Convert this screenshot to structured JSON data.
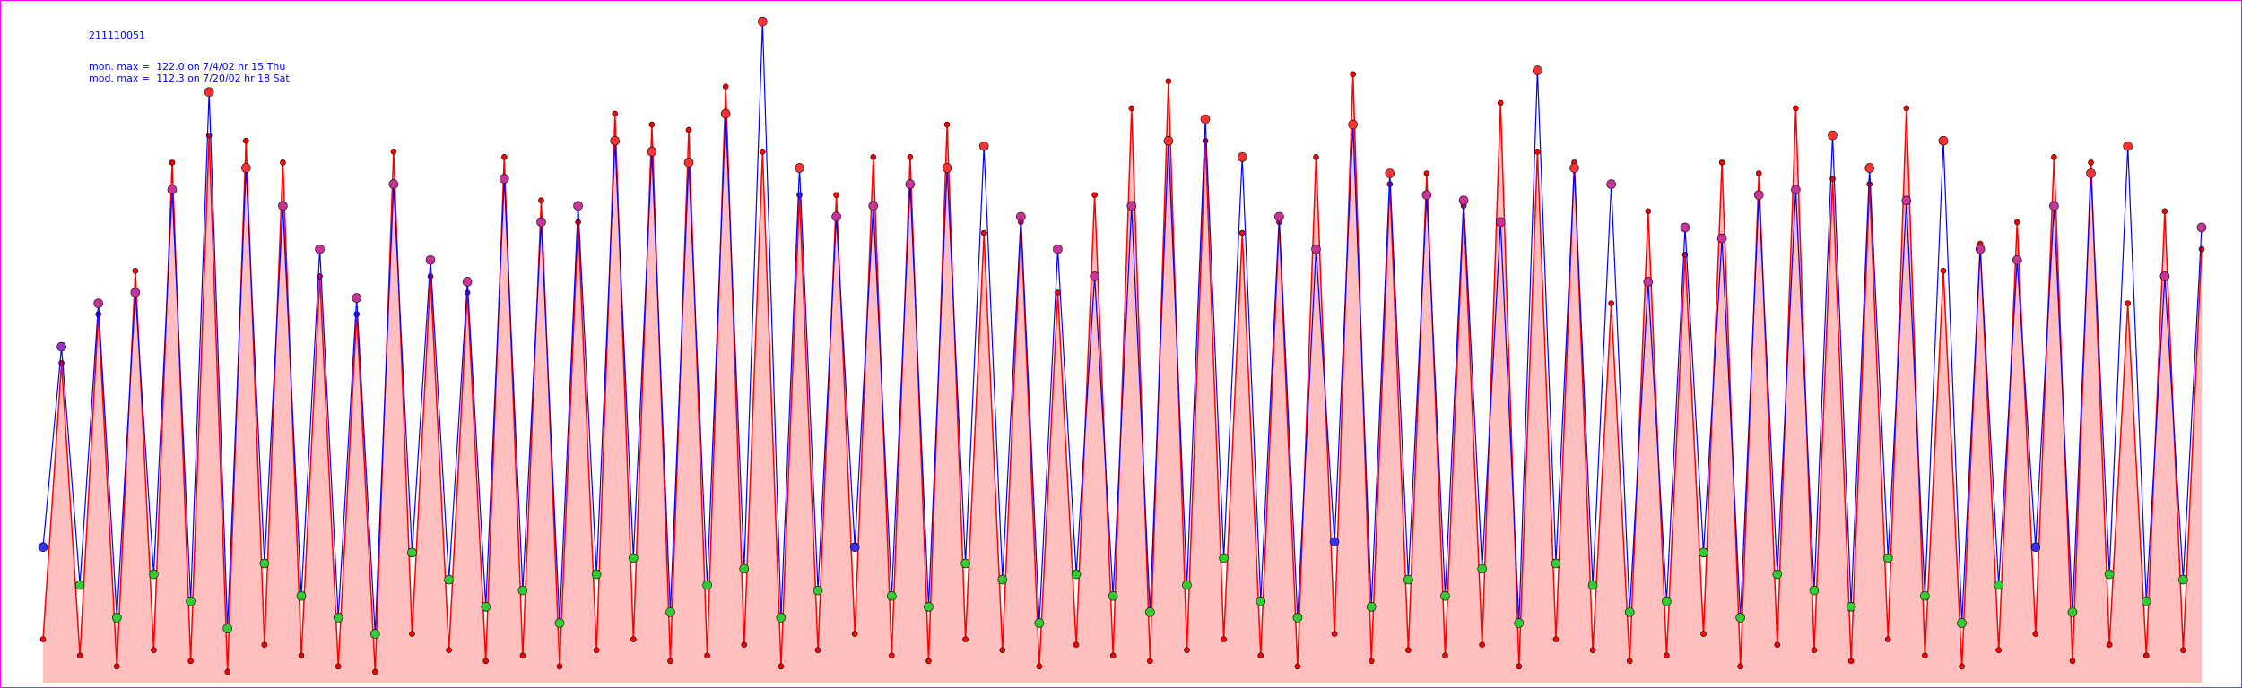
{
  "chart_data": {
    "type": "line",
    "title": "211110051",
    "annotations": [
      "mon. max =  122.0 on 7/4/02 hr 15 Thu",
      "mod. max =  112.3 on 7/20/02 hr 18 Sat"
    ],
    "ylim": [
      0,
      125
    ],
    "series": [
      {
        "color": "#ff0000",
        "values": [
          8,
          59,
          5,
          68,
          3,
          76,
          6,
          96,
          4,
          101,
          2,
          100,
          7,
          96,
          5,
          75,
          3,
          68,
          2,
          98,
          9,
          75,
          6,
          72,
          4,
          97,
          5,
          89,
          3,
          85,
          6,
          105,
          8,
          103,
          4,
          102,
          5,
          110,
          7,
          98,
          3,
          90,
          6,
          90,
          9,
          97,
          5,
          97,
          4,
          103,
          8,
          83,
          6,
          85,
          3,
          72,
          7,
          90,
          5,
          106,
          4,
          111,
          6,
          100,
          8,
          83,
          5,
          85,
          3,
          97,
          9,
          112.3,
          4,
          92,
          6,
          94,
          5,
          88,
          7,
          107,
          3,
          98,
          8,
          96,
          6,
          70,
          4,
          87,
          5,
          79,
          9,
          96,
          3,
          94,
          7,
          106,
          6,
          93,
          4,
          92,
          8,
          106,
          5,
          76,
          3,
          81,
          6,
          85,
          9,
          97,
          4,
          96,
          7,
          70,
          5,
          87,
          6,
          80
        ]
      },
      {
        "color": "#0000ff",
        "values": [
          25,
          62,
          18,
          70,
          12,
          72,
          20,
          91,
          15,
          109,
          10,
          95,
          22,
          88,
          16,
          80,
          12,
          71,
          9,
          92,
          24,
          78,
          19,
          74,
          14,
          93,
          17,
          85,
          11,
          88,
          20,
          100,
          23,
          98,
          13,
          96,
          18,
          105,
          21,
          122,
          12,
          95,
          17,
          86,
          25,
          88,
          16,
          92,
          14,
          95,
          22,
          99,
          19,
          86,
          11,
          80,
          20,
          75,
          16,
          88,
          13,
          100,
          18,
          104,
          23,
          97,
          15,
          86,
          12,
          80,
          26,
          103,
          14,
          94,
          19,
          90,
          16,
          89,
          21,
          85,
          11,
          113,
          22,
          95,
          18,
          92,
          13,
          74,
          15,
          84,
          24,
          82,
          12,
          90,
          20,
          91,
          17,
          101,
          14,
          95,
          23,
          89,
          16,
          100,
          11,
          80,
          18,
          78,
          25,
          88,
          13,
          94,
          20,
          99,
          15,
          75,
          19,
          84
        ]
      }
    ]
  }
}
